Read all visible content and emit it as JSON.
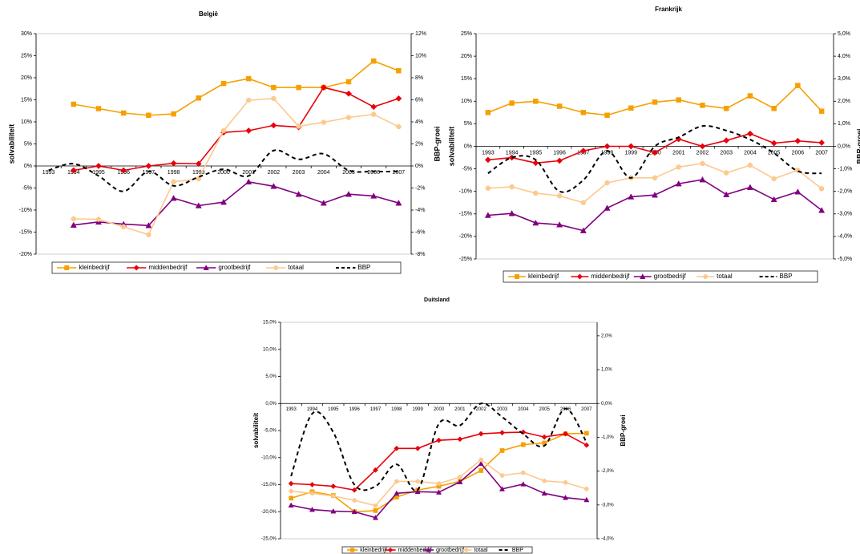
{
  "chart_data": [
    {
      "type": "line",
      "title": "België",
      "y_label": "solvabiliteit",
      "y2_label": "BBP-groei",
      "categories": [
        "1993",
        "1994",
        "1995",
        "1996",
        "1997",
        "1998",
        "1999",
        "2000",
        "2001",
        "2002",
        "2003",
        "2004",
        "2005",
        "2006",
        "2007"
      ],
      "series": [
        {
          "name": "kleinbedrijf",
          "color": "#f5a000",
          "marker": "square",
          "values": [
            null,
            14,
            13,
            12,
            11.5,
            11.8,
            15.4,
            18.7,
            19.8,
            17.8,
            17.8,
            17.8,
            19.1,
            23.8,
            21.6
          ]
        },
        {
          "name": "middenbedrijf",
          "color": "#e8000b",
          "marker": "diamond",
          "values": [
            null,
            -1,
            0,
            -1,
            0,
            0.6,
            0.5,
            7.6,
            8,
            9.2,
            8.8,
            17.8,
            16.4,
            13.4,
            15.3
          ]
        },
        {
          "name": "grootbedrijf",
          "color": "#800080",
          "marker": "triangle",
          "values": [
            null,
            -13.4,
            -12.7,
            -13.2,
            -13.5,
            -7.3,
            -9,
            -8.2,
            -3.6,
            -4.6,
            -6.4,
            -8.4,
            -6.4,
            -6.8,
            -8.4
          ]
        },
        {
          "name": "totaal",
          "color": "#fcc98f",
          "marker": "circle",
          "values": [
            null,
            -12,
            -12.1,
            -13.8,
            -15.6,
            -3.6,
            -2.9,
            8,
            14.9,
            15.3,
            9,
            9.9,
            11,
            11.7,
            8.9
          ]
        },
        {
          "name": "BBP",
          "color": "#000000",
          "dashed": true,
          "smooth": true,
          "axis": "y2",
          "values": [
            -0.4,
            0.2,
            -0.9,
            -2.3,
            -0.5,
            -1.8,
            -1,
            -0.3,
            -0.9,
            1.4,
            0.6,
            1.1,
            -0.4,
            -0.5,
            -0.5
          ]
        }
      ],
      "ylim": [
        -20,
        30
      ],
      "yticks": [
        {
          "value": -20,
          "label": "-20%"
        },
        {
          "value": -15,
          "label": "-15%"
        },
        {
          "value": -10,
          "label": "-10%"
        },
        {
          "value": -5,
          "label": "-5%"
        },
        {
          "value": 0,
          "label": "0%"
        },
        {
          "value": 5,
          "label": "5%"
        },
        {
          "value": 10,
          "label": "10%"
        },
        {
          "value": 15,
          "label": "15%"
        },
        {
          "value": 20,
          "label": "20%"
        },
        {
          "value": 25,
          "label": "25%"
        },
        {
          "value": 30,
          "label": "30%"
        }
      ],
      "y2lim": [
        -8,
        12
      ],
      "y2ticks": [
        {
          "value": -8,
          "label": "-8%"
        },
        {
          "value": -6,
          "label": "-6%"
        },
        {
          "value": -4,
          "label": "-4%"
        },
        {
          "value": -2,
          "label": "-2%"
        },
        {
          "value": 0,
          "label": "0%"
        },
        {
          "value": 2,
          "label": "2%"
        },
        {
          "value": 4,
          "label": "4%"
        },
        {
          "value": 6,
          "label": "6%"
        },
        {
          "value": 8,
          "label": "8%"
        },
        {
          "value": 10,
          "label": "10%"
        },
        {
          "value": 12,
          "label": "12%"
        }
      ],
      "legend": "bottom"
    },
    {
      "type": "line",
      "title": "Frankrijk",
      "y_label": "solvabiliteit",
      "y2_label": "BBP-groei",
      "categories": [
        "1993",
        "1994",
        "1995",
        "1996",
        "1997",
        "1998",
        "1999",
        "2000",
        "2001",
        "2002",
        "2003",
        "2004",
        "2005",
        "2006",
        "2007"
      ],
      "series": [
        {
          "name": "kleinbedrijf",
          "color": "#f5a000",
          "marker": "square",
          "values": [
            7.5,
            9.6,
            10,
            8.9,
            7.5,
            6.9,
            8.5,
            9.8,
            10.3,
            9.1,
            8.4,
            11.2,
            8.4,
            13.5,
            7.8
          ]
        },
        {
          "name": "middenbedrijf",
          "color": "#e8000b",
          "marker": "diamond",
          "values": [
            -3,
            -2.5,
            -3.7,
            -3.2,
            -1,
            0,
            0,
            -1.4,
            1.6,
            0,
            1.3,
            2.8,
            0.7,
            1.2,
            0.8
          ]
        },
        {
          "name": "grootbedrijf",
          "color": "#800080",
          "marker": "triangle",
          "values": [
            -15.3,
            -14.9,
            -17,
            -17.4,
            -18.7,
            -13.7,
            -11.2,
            -10.8,
            -8.3,
            -7.4,
            -10.7,
            -9.1,
            -11.8,
            -10.1,
            -14.2
          ]
        },
        {
          "name": "totaal",
          "color": "#fcc98f",
          "marker": "circle",
          "values": [
            -9.3,
            -9,
            -10.4,
            -11,
            -12.5,
            -8.1,
            -7,
            -7,
            -4.6,
            -3.8,
            -5.9,
            -4.2,
            -7.2,
            -5.3,
            -9.4
          ]
        },
        {
          "name": "BBP",
          "color": "#000000",
          "dashed": true,
          "smooth": true,
          "axis": "y2",
          "values": [
            -1.2,
            -0.5,
            -0.6,
            -2,
            -1.5,
            -0.2,
            -1.4,
            0,
            0.4,
            0.9,
            0.7,
            0.3,
            -0.3,
            -1.1,
            -1.2
          ]
        }
      ],
      "ylim": [
        -25,
        25
      ],
      "yticks": [
        {
          "value": -25,
          "label": "-25%"
        },
        {
          "value": -20,
          "label": "-20%"
        },
        {
          "value": -15,
          "label": "-15%"
        },
        {
          "value": -10,
          "label": "-10%"
        },
        {
          "value": -5,
          "label": "-5%"
        },
        {
          "value": 0,
          "label": "0%"
        },
        {
          "value": 5,
          "label": "5%"
        },
        {
          "value": 10,
          "label": "10%"
        },
        {
          "value": 15,
          "label": "15%"
        },
        {
          "value": 20,
          "label": "20%"
        },
        {
          "value": 25,
          "label": "25%"
        }
      ],
      "y2lim": [
        -5,
        5
      ],
      "y2ticks": [
        {
          "value": -5,
          "label": "-5,0%"
        },
        {
          "value": -4,
          "label": "-4,0%"
        },
        {
          "value": -3,
          "label": "-3,0%"
        },
        {
          "value": -2,
          "label": "-2,0%"
        },
        {
          "value": -1,
          "label": "-1,0%"
        },
        {
          "value": 0,
          "label": "0,0%"
        },
        {
          "value": 1,
          "label": "1,0%"
        },
        {
          "value": 2,
          "label": "2,0%"
        },
        {
          "value": 3,
          "label": "3,0%"
        },
        {
          "value": 4,
          "label": "4,0%"
        },
        {
          "value": 5,
          "label": "5,0%"
        }
      ],
      "legend": "bottom"
    },
    {
      "type": "line",
      "title": "Duitsland",
      "y_label": "solvabiliteit",
      "y2_label": "BBP-groei",
      "categories": [
        "1993",
        "1994",
        "1995",
        "1996",
        "1997",
        "1998",
        "1999",
        "2000",
        "2001",
        "2002",
        "2003",
        "2004",
        "2005",
        "2006",
        "2007"
      ],
      "series": [
        {
          "name": "kleinbedrijf",
          "color": "#f5a000",
          "marker": "square",
          "values": [
            -17.5,
            -16.3,
            -17,
            -20,
            -19.8,
            -17.3,
            -16,
            -15.3,
            -14.4,
            -12.4,
            -8.7,
            -7.6,
            -7.3,
            -5.6,
            -5.5
          ]
        },
        {
          "name": "middenbedrijf",
          "color": "#e8000b",
          "marker": "diamond",
          "values": [
            -14.8,
            -15,
            -15.3,
            -16,
            -12.3,
            -8.3,
            -8.3,
            -6.8,
            -6.6,
            -5.6,
            -5.4,
            -5.3,
            -6.2,
            -5.6,
            -7.7
          ]
        },
        {
          "name": "grootbedrijf",
          "color": "#800080",
          "marker": "triangle",
          "values": [
            -18.8,
            -19.6,
            -19.9,
            -20,
            -21.1,
            -16.6,
            -16.3,
            -16.4,
            -14.5,
            -11.1,
            -15.8,
            -14.9,
            -16.6,
            -17.4,
            -17.8
          ]
        },
        {
          "name": "totaal",
          "color": "#fcc98f",
          "marker": "circle",
          "values": [
            -16.2,
            -16.6,
            -17.1,
            -17.9,
            -18.9,
            -14.4,
            -14.4,
            -14.8,
            -13.6,
            -10.4,
            -13.3,
            -12.8,
            -14.3,
            -14.6,
            -15.8
          ]
        },
        {
          "name": "BBP",
          "color": "#000000",
          "dashed": true,
          "smooth": true,
          "axis": "y2",
          "values": [
            -2.15,
            -0.3,
            -0.85,
            -2.4,
            -2.45,
            -1.8,
            -2.55,
            -0.6,
            -0.65,
            0,
            -0.4,
            -0.9,
            -1.25,
            -0.15,
            -1.15
          ]
        }
      ],
      "ylim": [
        -25,
        15
      ],
      "yticks": [
        {
          "value": -25,
          "label": "-25,0%"
        },
        {
          "value": -20,
          "label": "-20,0%"
        },
        {
          "value": -15,
          "label": "-15,0%"
        },
        {
          "value": -10,
          "label": "-10,0%"
        },
        {
          "value": -5,
          "label": "-5,0%"
        },
        {
          "value": 0,
          "label": "0,0%"
        },
        {
          "value": 5,
          "label": "5,0%"
        },
        {
          "value": 10,
          "label": "10,0%"
        },
        {
          "value": 15,
          "label": "15,0%"
        }
      ],
      "y2lim": [
        -4,
        2.4
      ],
      "y2ticks": [
        {
          "value": -4,
          "label": "-4,0%"
        },
        {
          "value": -3,
          "label": "-3,0%"
        },
        {
          "value": -2,
          "label": "-2,0%"
        },
        {
          "value": -1,
          "label": "-1,0%"
        },
        {
          "value": 0,
          "label": "0,0%"
        },
        {
          "value": 1,
          "label": "1,0%"
        },
        {
          "value": 2,
          "label": "2,0%"
        }
      ],
      "legend": "bottom"
    }
  ]
}
